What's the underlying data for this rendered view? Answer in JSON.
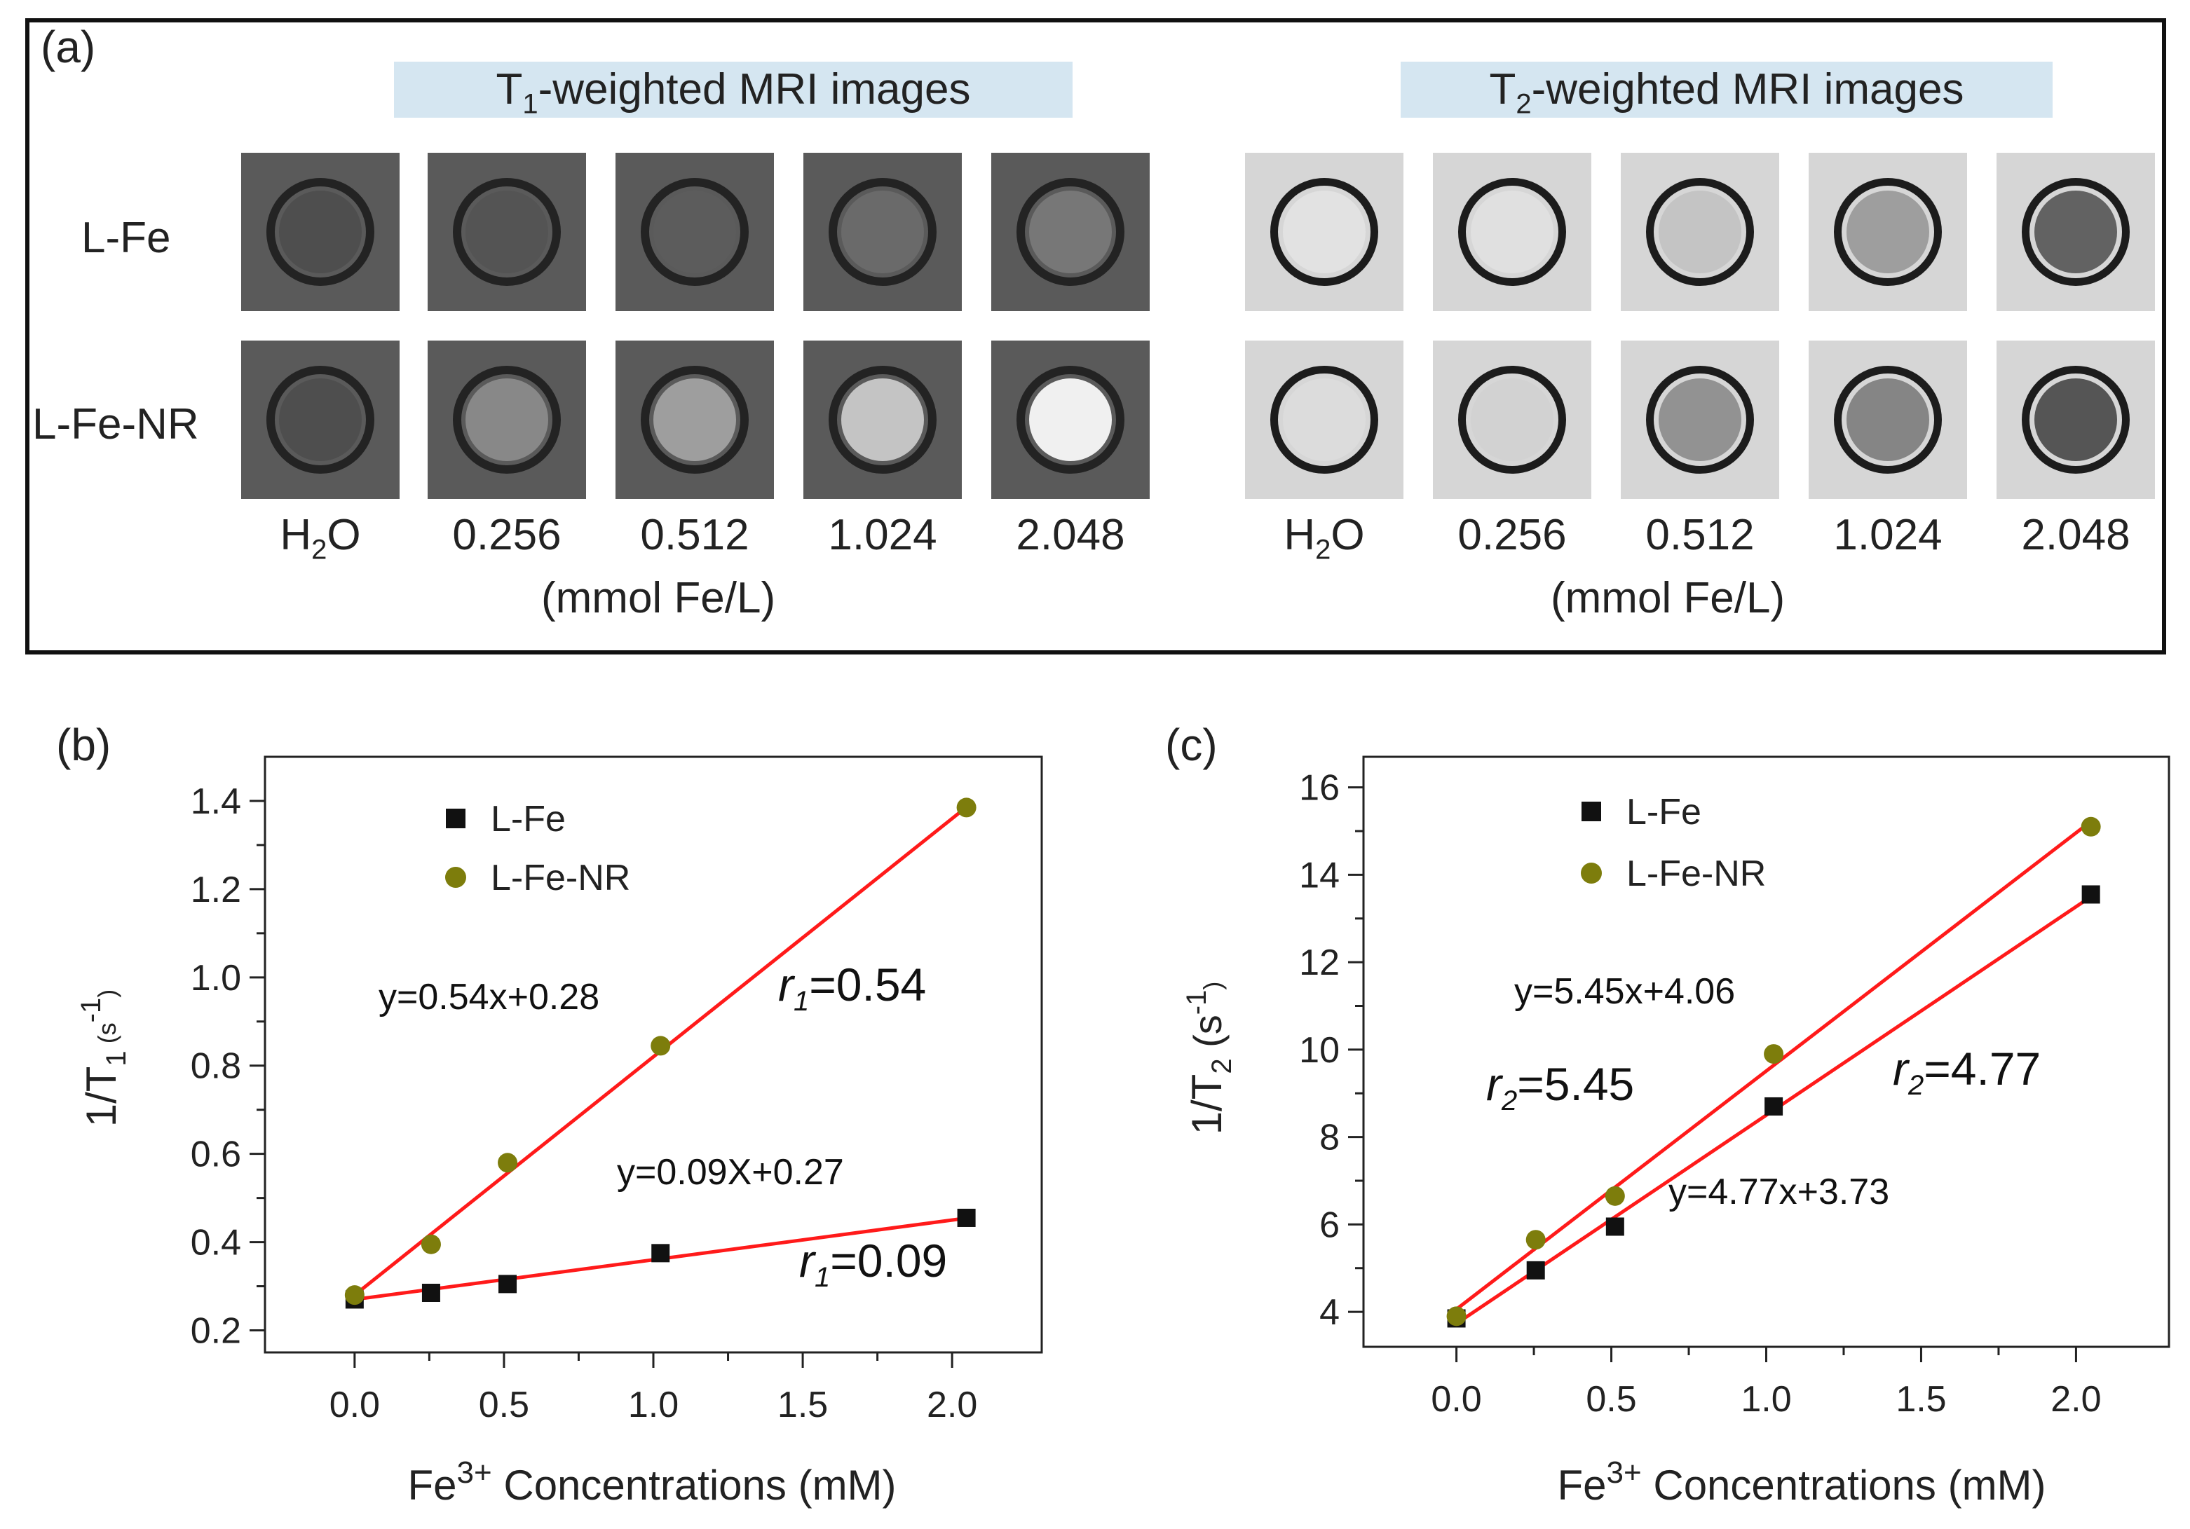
{
  "panel_a": {
    "letter": "(a)",
    "t1_header_base": "T",
    "t1_header_sub": "1",
    "t1_header_rest": "-weighted MRI images",
    "t2_header_base": "T",
    "t2_header_sub": "2",
    "t2_header_rest": "-weighted MRI images",
    "rows": [
      "L-Fe",
      "L-Fe-NR"
    ],
    "concentrations": [
      "0.256",
      "0.512",
      "1.024",
      "2.048"
    ],
    "h2o_base": "H",
    "h2o_sub": "2",
    "h2o_rest": "O",
    "unit": "(mmol Fe/L)",
    "t1_core_colors": [
      [
        "#4e4e4e",
        "#545454",
        "#5c5c5c",
        "#6a6a6a",
        "#777777"
      ],
      [
        "#4e4e4e",
        "#888888",
        "#9e9e9e",
        "#c4c4c4",
        "#f0f0f0"
      ]
    ],
    "t2_core_colors": [
      [
        "#e2e2e2",
        "#e0e0e0",
        "#c4c4c4",
        "#9e9e9e",
        "#626262"
      ],
      [
        "#dcdcdc",
        "#d2d2d2",
        "#929292",
        "#858585",
        "#555555"
      ]
    ]
  },
  "chart_data": [
    {
      "panel": "(b)",
      "type": "scatter",
      "ylabel_base": "1/T",
      "ylabel_sub": "1",
      "ylabel_unit": "(s",
      "ylabel_exp": "-1",
      "ylabel_close": ")",
      "xlabel_base": "Fe",
      "xlabel_sup": "3+",
      "xlabel_rest": " Concentrations (mM)",
      "xlim": [
        -0.3,
        2.3
      ],
      "ylim": [
        0.15,
        1.5
      ],
      "xticks": [
        "0.0",
        "0.5",
        "1.0",
        "1.5",
        "2.0"
      ],
      "yticks": [
        "0.2",
        "0.4",
        "0.6",
        "0.8",
        "1.0",
        "1.2",
        "1.4"
      ],
      "legend_position": "top-left",
      "series": [
        {
          "name": "L-Fe",
          "marker": "square",
          "color": "#111111",
          "x": [
            0,
            0.256,
            0.512,
            1.024,
            2.048
          ],
          "y": [
            0.27,
            0.285,
            0.305,
            0.375,
            0.455
          ],
          "fit": {
            "slope": 0.09,
            "intercept": 0.27
          }
        },
        {
          "name": "L-Fe-NR",
          "marker": "circle",
          "color": "#7d7d0c",
          "x": [
            0,
            0.256,
            0.512,
            1.024,
            2.048
          ],
          "y": [
            0.28,
            0.395,
            0.58,
            0.845,
            1.385
          ],
          "fit": {
            "slope": 0.54,
            "intercept": 0.28
          }
        }
      ],
      "fit_color": "#ff1a1a",
      "annotations": {
        "eq_nr": "y=0.54x+0.28",
        "eq_fe": "y=0.09X+0.27",
        "r_sym": "r",
        "r_sub": "1",
        "r_nr_val": "=0.54",
        "r_fe_val": "=0.09"
      }
    },
    {
      "panel": "(c)",
      "type": "scatter",
      "ylabel_base": "1/T",
      "ylabel_sub": "2",
      "ylabel_unit": "(s",
      "ylabel_exp": "-1",
      "ylabel_close": ")",
      "xlabel_base": "Fe",
      "xlabel_sup": "3+",
      "xlabel_rest": " Concentrations (mM)",
      "xlim": [
        -0.3,
        2.3
      ],
      "ylim": [
        3.2,
        16.7
      ],
      "xticks": [
        "0.0",
        "0.5",
        "1.0",
        "1.5",
        "2.0"
      ],
      "yticks": [
        "4",
        "6",
        "8",
        "10",
        "12",
        "14",
        "16"
      ],
      "legend_position": "top-left",
      "series": [
        {
          "name": "L-Fe",
          "marker": "square",
          "color": "#111111",
          "x": [
            0,
            0.256,
            0.512,
            1.024,
            2.048
          ],
          "y": [
            3.85,
            4.95,
            5.95,
            8.7,
            13.55
          ],
          "fit": {
            "slope": 4.77,
            "intercept": 3.73
          }
        },
        {
          "name": "L-Fe-NR",
          "marker": "circle",
          "color": "#7d7d0c",
          "x": [
            0,
            0.256,
            0.512,
            1.024,
            2.048
          ],
          "y": [
            3.9,
            5.65,
            6.65,
            9.9,
            15.1
          ],
          "fit": {
            "slope": 5.45,
            "intercept": 4.06
          }
        }
      ],
      "fit_color": "#ff1a1a",
      "annotations": {
        "eq_nr": "y=5.45x+4.06",
        "eq_fe": "y=4.77x+3.73",
        "r_sym": "r",
        "r_sub": "2",
        "r_nr_val": "=5.45",
        "r_fe_val": "=4.77"
      }
    }
  ]
}
